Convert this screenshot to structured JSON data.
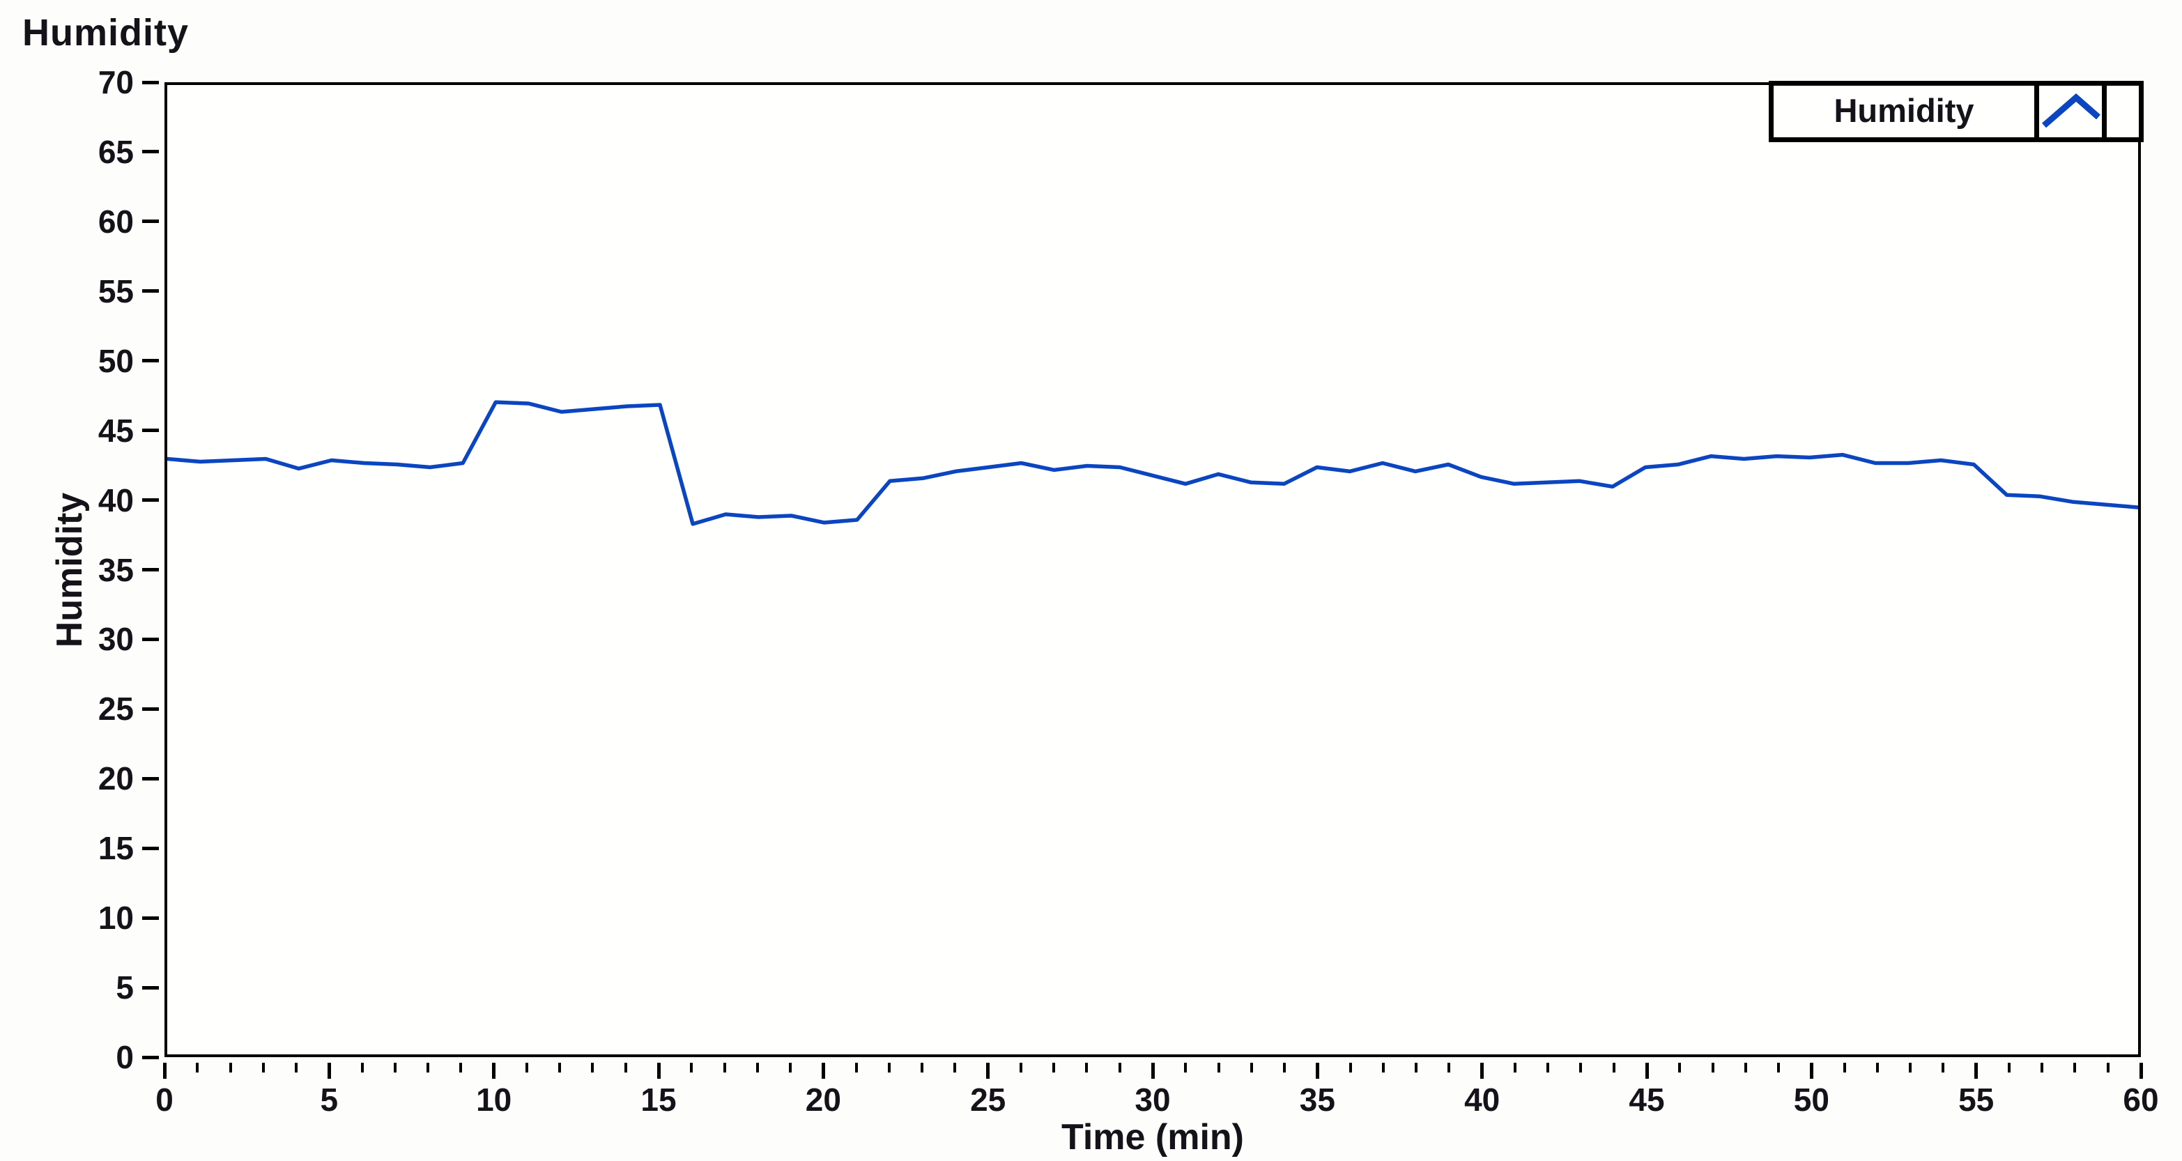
{
  "ui": {
    "background_color": "#fdfdfb",
    "axis_color": "#000000",
    "text_color": "#15121a"
  },
  "chart_data": {
    "type": "line",
    "title": "Humidity",
    "xlabel": "Time (min)",
    "ylabel": "Humidity",
    "legend": {
      "label": "Humidity",
      "position": "top-right"
    },
    "line_color": "#0b46c0",
    "grid": false,
    "xlim": [
      0,
      60
    ],
    "ylim": [
      0,
      70
    ],
    "x_ticks": [
      0,
      5,
      10,
      15,
      20,
      25,
      30,
      35,
      40,
      45,
      50,
      55,
      60
    ],
    "x_minor_tick_step": 1,
    "y_ticks": [
      0,
      5,
      10,
      15,
      20,
      25,
      30,
      35,
      40,
      45,
      50,
      55,
      60,
      65,
      70
    ],
    "x": [
      0,
      1,
      2,
      3,
      4,
      5,
      6,
      7,
      8,
      9,
      10,
      11,
      12,
      13,
      14,
      15,
      16,
      17,
      18,
      19,
      20,
      21,
      22,
      23,
      24,
      25,
      26,
      27,
      28,
      29,
      30,
      31,
      32,
      33,
      34,
      35,
      36,
      37,
      38,
      39,
      40,
      41,
      42,
      43,
      44,
      45,
      46,
      47,
      48,
      49,
      50,
      51,
      52,
      53,
      54,
      55,
      56,
      57,
      58,
      59,
      60
    ],
    "values": [
      43.0,
      42.8,
      42.9,
      43.0,
      42.3,
      42.9,
      42.7,
      42.6,
      42.4,
      42.7,
      47.1,
      47.0,
      46.4,
      46.6,
      46.8,
      46.9,
      38.3,
      39.0,
      38.8,
      38.9,
      38.4,
      38.6,
      41.4,
      41.6,
      42.1,
      42.4,
      42.7,
      42.2,
      42.5,
      42.4,
      41.8,
      41.2,
      41.9,
      41.3,
      41.2,
      42.4,
      42.1,
      42.7,
      42.1,
      42.6,
      41.7,
      41.2,
      41.3,
      41.4,
      41.0,
      42.4,
      42.6,
      43.2,
      43.0,
      43.2,
      43.1,
      43.3,
      42.7,
      42.7,
      42.9,
      42.6,
      40.4,
      40.3,
      39.9,
      39.7,
      39.5
    ]
  }
}
